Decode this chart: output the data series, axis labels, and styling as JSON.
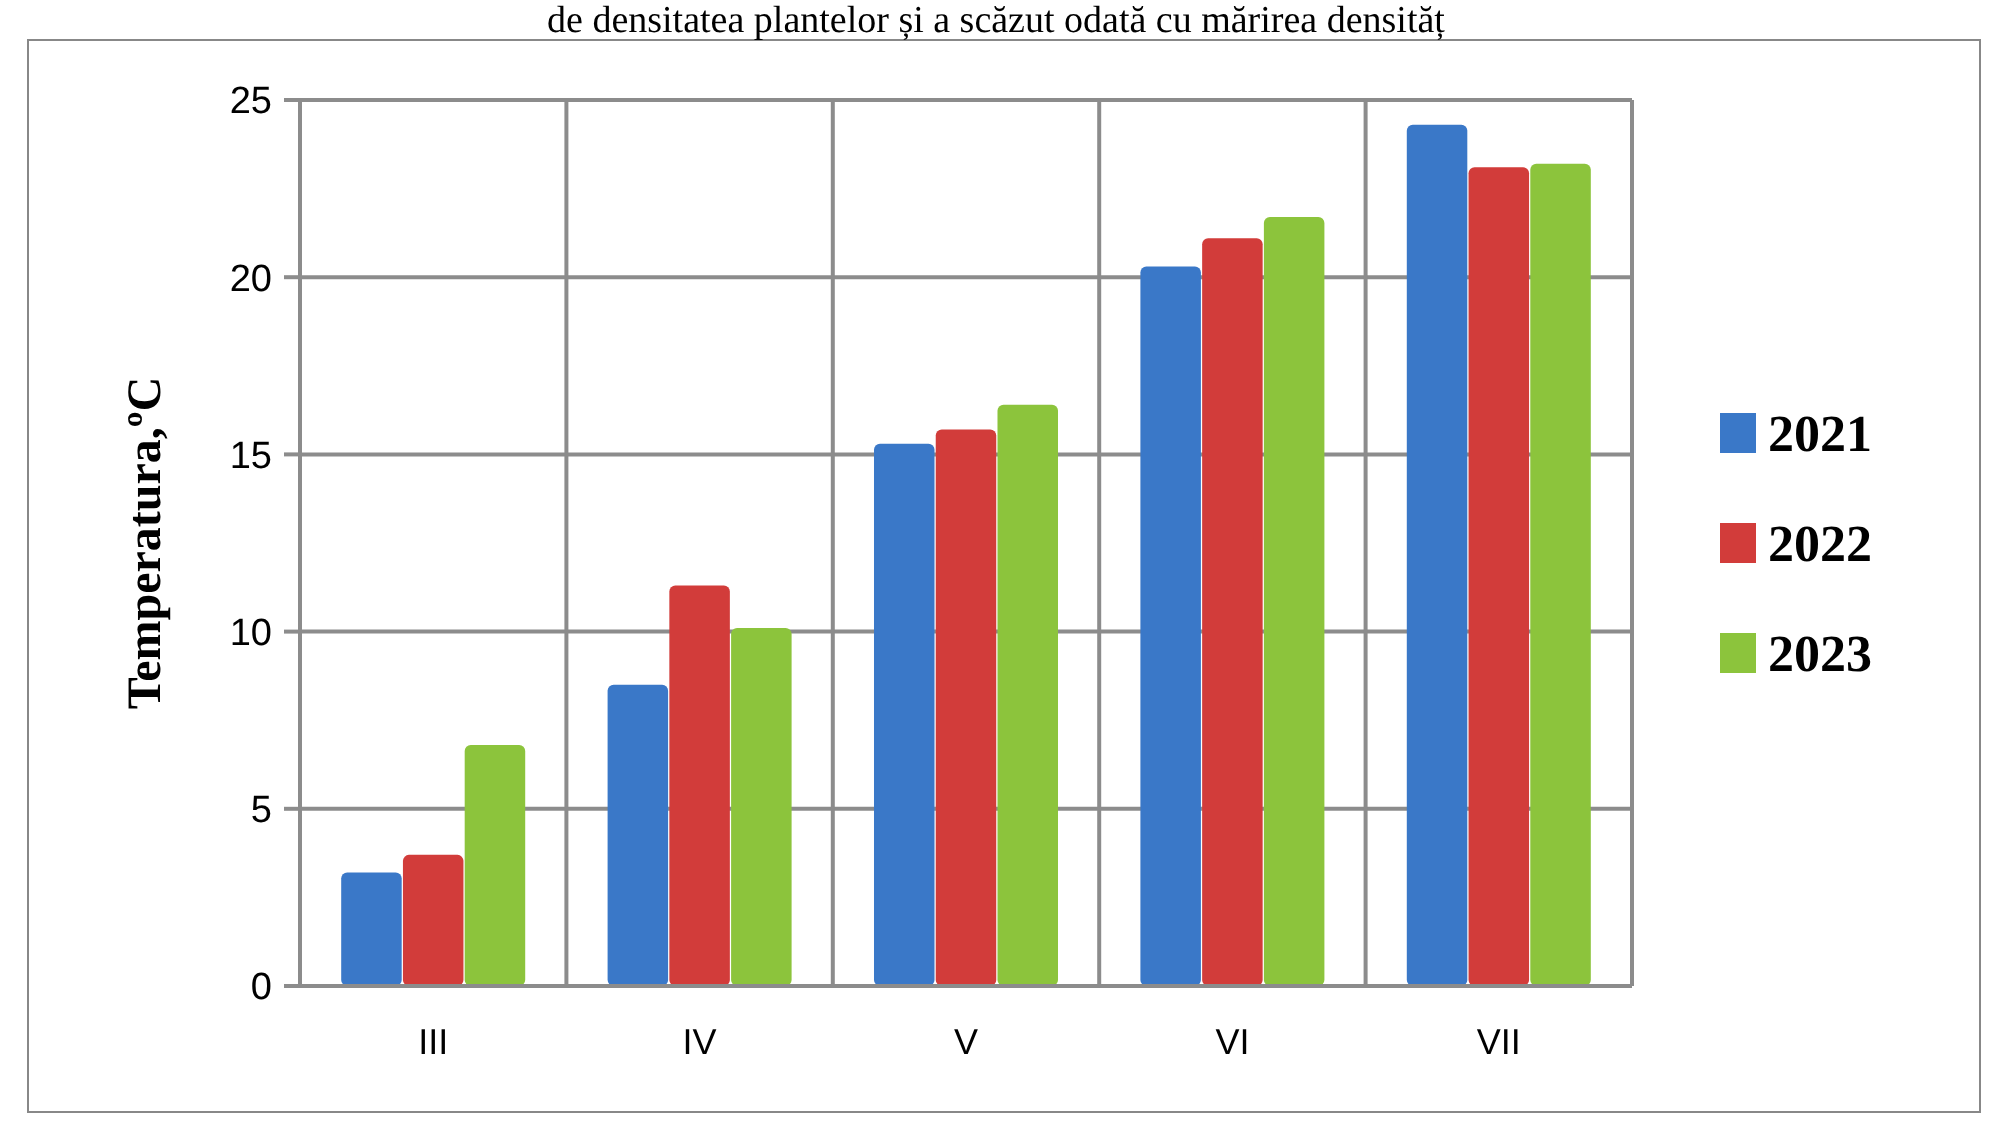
{
  "chart_data": {
    "type": "bar",
    "ylabel": "Temperatura,ºC",
    "categories": [
      "III",
      "IV",
      "V",
      "VI",
      "VII"
    ],
    "series": [
      {
        "name": "2021",
        "color": "#3a78c8",
        "values": [
          3.2,
          8.5,
          15.3,
          20.3,
          24.3
        ]
      },
      {
        "name": "2022",
        "color": "#d23c3a",
        "values": [
          3.7,
          11.3,
          15.7,
          21.1,
          23.1
        ]
      },
      {
        "name": "2023",
        "color": "#8cc43c",
        "values": [
          6.8,
          10.1,
          16.4,
          21.7,
          23.2
        ]
      }
    ],
    "ylim": [
      0,
      25
    ],
    "yticks": [
      0,
      5,
      10,
      15,
      20,
      25
    ],
    "grid": true,
    "legend": "right",
    "annotations": [
      "de densitatea plantelor și a scăzut odată cu mărirea densităț"
    ]
  }
}
